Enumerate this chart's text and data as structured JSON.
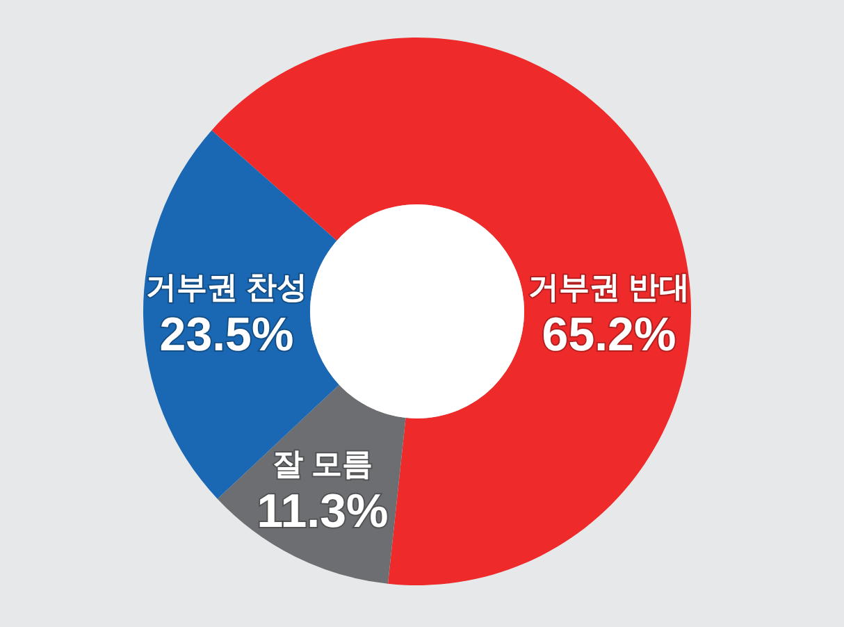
{
  "chart_data": {
    "type": "donut",
    "categories": [
      "거부권 반대",
      "잘 모름",
      "거부권 찬성"
    ],
    "values": [
      65.2,
      11.3,
      23.5
    ],
    "colors": [
      "#ee2a2a",
      "#6d6e71",
      "#1a68b3"
    ],
    "value_labels": [
      "65.2%",
      "11.3%",
      "23.5%"
    ]
  }
}
